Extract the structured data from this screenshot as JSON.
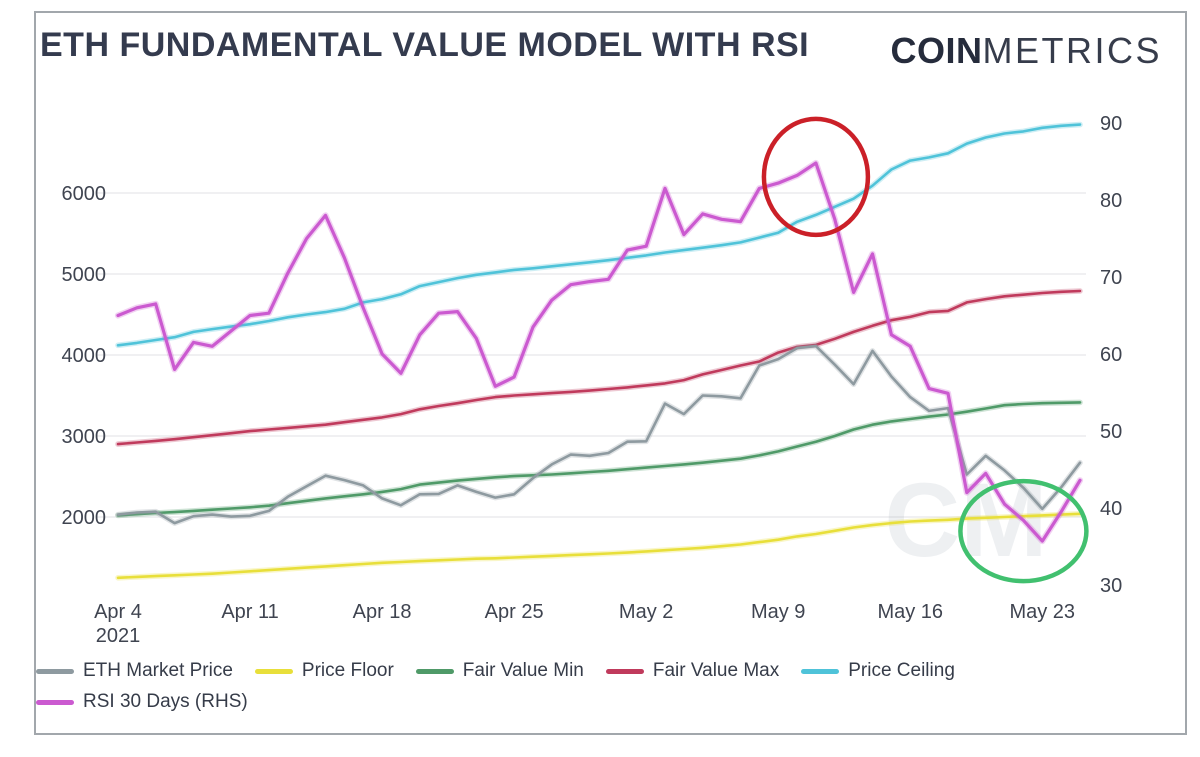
{
  "page": {
    "title": "ETH FUNDAMENTAL VALUE MODEL WITH RSI",
    "logo_bold": "COIN",
    "logo_light": "METRICS",
    "watermark": "CM"
  },
  "colors": {
    "title": "#343b4e",
    "axis_text": "#3f4450",
    "grid": "#ececee",
    "border": "#a2a7ac",
    "watermark": "#8d99a6",
    "annotation_red": "#cb2028",
    "annotation_green": "#41c06f"
  },
  "chart_data": {
    "type": "line",
    "title": "ETH FUNDAMENTAL VALUE MODEL WITH RSI",
    "x_dates": [
      "Apr 4",
      "Apr 5",
      "Apr 6",
      "Apr 7",
      "Apr 8",
      "Apr 9",
      "Apr 10",
      "Apr 11",
      "Apr 12",
      "Apr 13",
      "Apr 14",
      "Apr 15",
      "Apr 16",
      "Apr 17",
      "Apr 18",
      "Apr 19",
      "Apr 20",
      "Apr 21",
      "Apr 22",
      "Apr 23",
      "Apr 24",
      "Apr 25",
      "Apr 26",
      "Apr 27",
      "Apr 28",
      "Apr 29",
      "Apr 30",
      "May 1",
      "May 2",
      "May 3",
      "May 4",
      "May 5",
      "May 6",
      "May 7",
      "May 8",
      "May 9",
      "May 10",
      "May 11",
      "May 12",
      "May 13",
      "May 14",
      "May 15",
      "May 16",
      "May 17",
      "May 18",
      "May 19",
      "May 20",
      "May 21",
      "May 22",
      "May 23",
      "May 24",
      "May 25"
    ],
    "x_ticks": [
      {
        "label": "Apr 4",
        "index": 0,
        "sublabel": "2021"
      },
      {
        "label": "Apr 11",
        "index": 7
      },
      {
        "label": "Apr 18",
        "index": 14
      },
      {
        "label": "Apr 25",
        "index": 21
      },
      {
        "label": "May 2",
        "index": 28
      },
      {
        "label": "May 9",
        "index": 35
      },
      {
        "label": "May 16",
        "index": 42
      },
      {
        "label": "May 23",
        "index": 49
      }
    ],
    "left_axis": {
      "unit": "price_usd",
      "ticks": [
        6000,
        5000,
        4000,
        3000,
        2000
      ]
    },
    "right_axis": {
      "unit": "rsi",
      "ticks": [
        90,
        80,
        70,
        60,
        50,
        40,
        30
      ]
    },
    "grid": "horizontal-only",
    "legend_position": "bottom-left",
    "series": [
      {
        "name": "price_floor",
        "legend_label": "Price Floor",
        "legend_pos": 2,
        "legend_row": 1,
        "color": "#e8df3a",
        "axis": "left",
        "values": [
          1250,
          1260,
          1270,
          1280,
          1290,
          1300,
          1315,
          1330,
          1345,
          1360,
          1375,
          1390,
          1405,
          1420,
          1435,
          1445,
          1455,
          1465,
          1475,
          1485,
          1490,
          1500,
          1510,
          1520,
          1530,
          1540,
          1550,
          1560,
          1575,
          1590,
          1605,
          1620,
          1640,
          1660,
          1690,
          1720,
          1760,
          1790,
          1830,
          1870,
          1900,
          1925,
          1945,
          1955,
          1965,
          1980,
          1990,
          2000,
          2010,
          2020,
          2030,
          2040
        ]
      },
      {
        "name": "fair_value_min",
        "legend_label": "Fair Value Min",
        "legend_pos": 3,
        "legend_row": 1,
        "color": "#4f9a68",
        "axis": "left",
        "values": [
          2020,
          2035,
          2050,
          2060,
          2075,
          2090,
          2105,
          2120,
          2140,
          2170,
          2200,
          2230,
          2255,
          2280,
          2310,
          2345,
          2400,
          2425,
          2450,
          2470,
          2490,
          2505,
          2515,
          2525,
          2540,
          2555,
          2570,
          2590,
          2610,
          2630,
          2650,
          2670,
          2695,
          2720,
          2760,
          2810,
          2870,
          2930,
          3000,
          3080,
          3140,
          3180,
          3210,
          3240,
          3265,
          3300,
          3340,
          3380,
          3395,
          3405,
          3410,
          3415
        ]
      },
      {
        "name": "fair_value_max",
        "legend_label": "Fair Value Max",
        "legend_pos": 4,
        "legend_row": 1,
        "color": "#c03a5c",
        "axis": "left",
        "values": [
          2900,
          2920,
          2940,
          2960,
          2985,
          3010,
          3035,
          3060,
          3080,
          3100,
          3120,
          3140,
          3170,
          3200,
          3230,
          3270,
          3330,
          3370,
          3405,
          3445,
          3480,
          3500,
          3515,
          3530,
          3545,
          3560,
          3580,
          3600,
          3625,
          3650,
          3690,
          3760,
          3815,
          3870,
          3920,
          4030,
          4100,
          4125,
          4200,
          4285,
          4360,
          4430,
          4470,
          4530,
          4545,
          4650,
          4690,
          4725,
          4745,
          4765,
          4780,
          4790
        ]
      },
      {
        "name": "price_ceiling",
        "legend_label": "Price Ceiling",
        "legend_pos": 5,
        "legend_row": 1,
        "color": "#4fc3d9",
        "axis": "left",
        "values": [
          4120,
          4150,
          4185,
          4220,
          4285,
          4320,
          4350,
          4380,
          4420,
          4465,
          4500,
          4530,
          4570,
          4650,
          4690,
          4750,
          4850,
          4900,
          4950,
          4990,
          5020,
          5050,
          5070,
          5095,
          5120,
          5145,
          5170,
          5200,
          5230,
          5265,
          5295,
          5325,
          5355,
          5390,
          5450,
          5510,
          5645,
          5730,
          5830,
          5930,
          6090,
          6290,
          6400,
          6440,
          6490,
          6610,
          6685,
          6735,
          6760,
          6805,
          6830,
          6845
        ]
      },
      {
        "name": "eth_market_price",
        "legend_label": "ETH Market Price",
        "legend_pos": 1,
        "legend_row": 1,
        "color": "#8e9aa0",
        "axis": "left",
        "values": [
          2030,
          2055,
          2065,
          1925,
          2010,
          2030,
          2005,
          2015,
          2075,
          2250,
          2380,
          2510,
          2455,
          2390,
          2230,
          2145,
          2280,
          2285,
          2390,
          2310,
          2240,
          2280,
          2480,
          2650,
          2770,
          2755,
          2790,
          2930,
          2935,
          3400,
          3270,
          3500,
          3490,
          3465,
          3870,
          3950,
          4085,
          4110,
          3880,
          3640,
          4050,
          3735,
          3480,
          3310,
          3345,
          2525,
          2755,
          2575,
          2360,
          2100,
          2365,
          2670
        ]
      },
      {
        "name": "rsi_30_days",
        "legend_label": "RSI 30 Days (RHS)",
        "legend_pos": 6,
        "legend_row": 2,
        "color": "#cb5ad0",
        "axis": "right",
        "values": [
          65,
          66,
          66.5,
          58,
          61.5,
          61,
          63,
          65,
          65.3,
          70.5,
          75,
          78,
          72.5,
          66,
          60,
          57.5,
          62.5,
          65.3,
          65.5,
          62,
          55.8,
          57,
          63.5,
          67,
          69,
          69.4,
          69.7,
          73.5,
          74,
          81.5,
          75.5,
          78.2,
          77.5,
          77.2,
          81.5,
          82.2,
          83.2,
          84.8,
          77.5,
          68,
          73,
          62.5,
          61,
          55.5,
          54.9,
          42,
          44.5,
          40.5,
          38.4,
          35.7,
          39.5,
          43.6
        ]
      }
    ],
    "annotations": [
      {
        "shape": "ellipse",
        "color": "#cb2028",
        "x_date": "May 11",
        "y_value": 83,
        "y_axis": "right",
        "note": "circled RSI peak"
      },
      {
        "shape": "ellipse",
        "color": "#41c06f",
        "x_date": "May 22",
        "y_value": 37,
        "y_axis": "right",
        "note": "circled RSI trough"
      }
    ]
  }
}
